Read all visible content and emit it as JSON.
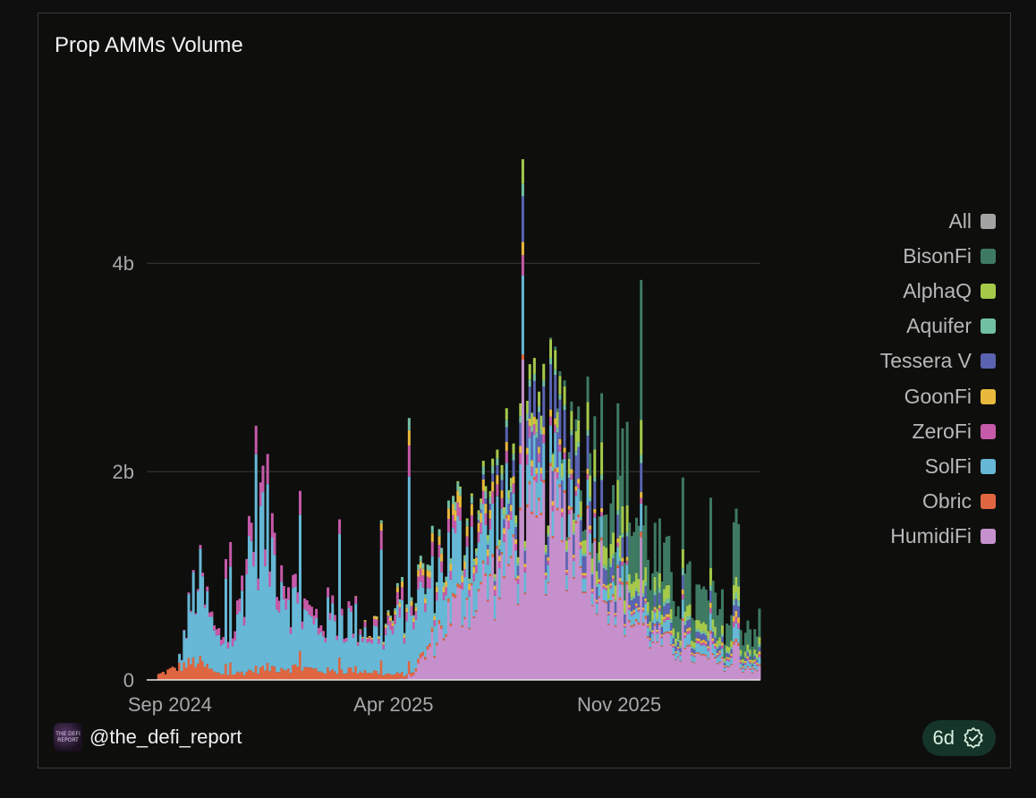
{
  "chart_data": {
    "type": "area",
    "title": "Prop AMMs Volume",
    "xlabel": "",
    "ylabel": "",
    "x_tick_labels": [
      "Sep 2024",
      "Apr 2025",
      "Nov 2025"
    ],
    "x_tick_positions": [
      "2024-09-01",
      "2025-04-01",
      "2025-11-01"
    ],
    "x_range": [
      "2024-08-10",
      "2026-03-15"
    ],
    "y_tick_labels": [
      "0",
      "2b",
      "4b"
    ],
    "y_ticks": [
      0,
      2000000000,
      4000000000
    ],
    "ylim": [
      0,
      5900000000
    ],
    "grid": true,
    "stacked": true,
    "legend_position": "right",
    "legend": [
      "All",
      "BisonFi",
      "AlphaQ",
      "Aquifer",
      "Tessera V",
      "GoonFi",
      "ZeroFi",
      "SolFi",
      "Obric",
      "HumidiFi"
    ],
    "colors": {
      "All": "#a3a3a3",
      "BisonFi": "#3e7a62",
      "AlphaQ": "#a6c94a",
      "Aquifer": "#72c0a3",
      "Tessera V": "#5963b0",
      "GoonFi": "#e8b93c",
      "ZeroFi": "#c55aa8",
      "SolFi": "#66b8d6",
      "Obric": "#df6641",
      "HumidiFi": "#c690cc"
    },
    "series": [
      {
        "name": "HumidiFi",
        "values": [
          0,
          0,
          0,
          0,
          0,
          0,
          0,
          0,
          0,
          0,
          0,
          0,
          0,
          0.02,
          0.3,
          0.6,
          0.8,
          0.9,
          1.1,
          1.3,
          1.4,
          1.5,
          1.3,
          1.0,
          0.7,
          0.5,
          0.35,
          0.25,
          0.2,
          0.15,
          0.12,
          0.1
        ]
      },
      {
        "name": "Obric",
        "values": [
          0.05,
          0.12,
          0.18,
          0.06,
          0.06,
          0.1,
          0.12,
          0.12,
          0.1,
          0.08,
          0.1,
          0.08,
          0.05,
          0.04,
          0.03,
          0.03,
          0.02,
          0.02,
          0.02,
          0.02,
          0.02,
          0.02,
          0.02,
          0.02,
          0.02,
          0.02,
          0.01,
          0.01,
          0.01,
          0.01,
          0.01,
          0.01
        ]
      },
      {
        "name": "SolFi",
        "values": [
          0,
          0,
          0.8,
          0.3,
          0.35,
          1.5,
          1.0,
          0.6,
          0.4,
          0.5,
          0.45,
          0.35,
          0.4,
          0.6,
          0.5,
          0.5,
          0.5,
          0.4,
          0.35,
          0.3,
          0.25,
          0.25,
          0.2,
          0.15,
          0.12,
          0.1,
          0.08,
          0.08,
          0.07,
          0.06,
          0.05,
          0.05
        ]
      },
      {
        "name": "ZeroFi",
        "values": [
          0,
          0,
          0.02,
          0.05,
          0.1,
          0.2,
          0.2,
          0.1,
          0.08,
          0.06,
          0.05,
          0.05,
          0.08,
          0.1,
          0.1,
          0.1,
          0.1,
          0.1,
          0.08,
          0.08,
          0.06,
          0.05,
          0.04,
          0.03,
          0.03,
          0.02,
          0.02,
          0.02,
          0.02,
          0.02,
          0.02,
          0.02
        ]
      },
      {
        "name": "GoonFi",
        "values": [
          0,
          0,
          0,
          0,
          0,
          0,
          0,
          0,
          0,
          0,
          0,
          0.02,
          0.03,
          0.05,
          0.06,
          0.08,
          0.1,
          0.08,
          0.06,
          0.05,
          0.05,
          0.04,
          0.04,
          0.03,
          0.03,
          0.02,
          0.02,
          0.02,
          0.02,
          0.02,
          0.02,
          0.02
        ]
      },
      {
        "name": "Tessera V",
        "values": [
          0,
          0,
          0,
          0,
          0,
          0,
          0,
          0,
          0,
          0,
          0,
          0,
          0,
          0,
          0,
          0,
          0,
          0.05,
          0.1,
          0.2,
          0.3,
          0.3,
          0.25,
          0.2,
          0.15,
          0.1,
          0.08,
          0.06,
          0.05,
          0.04,
          0.04,
          0.03
        ]
      },
      {
        "name": "Aquifer",
        "values": [
          0,
          0,
          0,
          0,
          0,
          0,
          0,
          0,
          0,
          0,
          0,
          0,
          0.02,
          0.04,
          0.05,
          0.06,
          0.06,
          0.06,
          0.05,
          0.05,
          0.04,
          0.04,
          0.04,
          0.04,
          0.03,
          0.03,
          0.03,
          0.03,
          0.02,
          0.02,
          0.02,
          0.02
        ]
      },
      {
        "name": "AlphaQ",
        "values": [
          0,
          0,
          0,
          0,
          0,
          0,
          0,
          0,
          0,
          0,
          0,
          0,
          0,
          0,
          0,
          0,
          0.02,
          0.05,
          0.08,
          0.1,
          0.12,
          0.15,
          0.2,
          0.25,
          0.2,
          0.12,
          0.1,
          0.08,
          0.07,
          0.06,
          0.05,
          0.05
        ]
      },
      {
        "name": "BisonFi",
        "values": [
          0,
          0,
          0,
          0,
          0,
          0,
          0,
          0,
          0,
          0,
          0,
          0,
          0,
          0,
          0,
          0,
          0,
          0,
          0,
          0,
          0,
          0.05,
          0.15,
          0.4,
          0.6,
          0.5,
          0.35,
          0.3,
          0.28,
          0.25,
          0.22,
          0.2
        ]
      }
    ]
  },
  "footer": {
    "handle": "@the_defi_report",
    "avatar_text": "THE DEFI REPORT",
    "badge_text": "6d"
  }
}
